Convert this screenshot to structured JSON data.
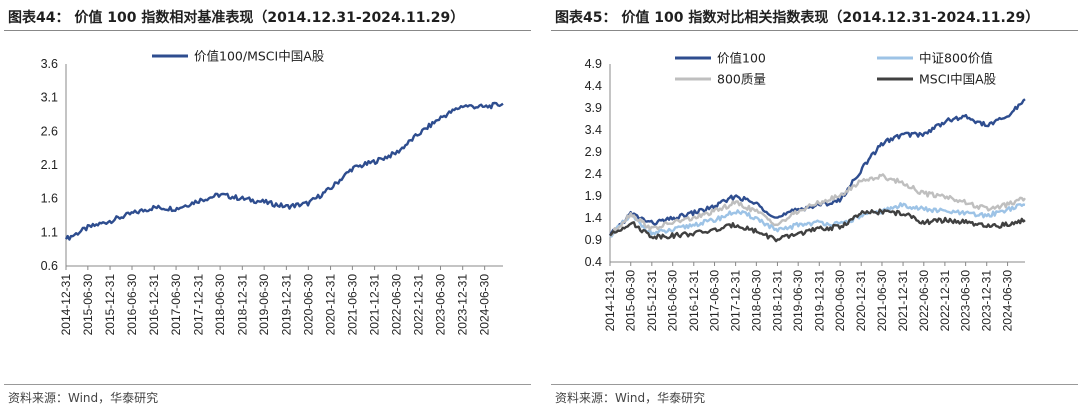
{
  "left": {
    "title": "图表44：  价值 100 指数相对基准表现（2014.12.31-2024.11.29）",
    "source": "资料来源：Wind，华泰研究"
  },
  "right": {
    "title": "图表45：  价值 100 指数对比相关指数表现（2014.12.31-2024.11.29）",
    "source": "资料来源：Wind，华泰研究"
  },
  "chart_data": [
    {
      "type": "line",
      "x_ticks": [
        "2014-12-31",
        "2015-06-30",
        "2015-12-31",
        "2016-06-30",
        "2016-12-31",
        "2017-06-30",
        "2017-12-31",
        "2018-06-30",
        "2018-12-31",
        "2019-06-30",
        "2019-12-31",
        "2020-06-30",
        "2020-12-31",
        "2021-06-30",
        "2021-12-31",
        "2022-06-30",
        "2022-12-31",
        "2023-06-30",
        "2023-12-31",
        "2024-06-30"
      ],
      "x": [
        "2014-12-31",
        "2015-06-30",
        "2015-12-31",
        "2016-06-30",
        "2016-12-31",
        "2017-06-30",
        "2017-12-31",
        "2018-06-30",
        "2018-12-31",
        "2019-06-30",
        "2019-12-31",
        "2020-06-30",
        "2020-12-31",
        "2021-06-30",
        "2021-12-31",
        "2022-06-30",
        "2022-12-31",
        "2023-06-30",
        "2023-12-31",
        "2024-06-30",
        "2024-11-29"
      ],
      "y_ticks": [
        "0.6",
        "1.1",
        "1.6",
        "2.1",
        "2.6",
        "3.1",
        "3.6"
      ],
      "ylim": [
        0.6,
        3.6
      ],
      "legend_position": "top-center",
      "series": [
        {
          "name": "价值100/MSCI中国A股",
          "color": "#2e4d8f",
          "values": [
            1.0,
            1.17,
            1.27,
            1.38,
            1.47,
            1.45,
            1.57,
            1.66,
            1.6,
            1.55,
            1.48,
            1.53,
            1.75,
            2.05,
            2.15,
            2.28,
            2.56,
            2.8,
            2.98,
            2.96,
            3.01
          ]
        }
      ]
    },
    {
      "type": "line",
      "x_ticks": [
        "2014-12-31",
        "2015-06-30",
        "2015-12-31",
        "2016-06-30",
        "2016-12-31",
        "2017-06-30",
        "2017-12-31",
        "2018-06-30",
        "2018-12-31",
        "2019-06-30",
        "2019-12-31",
        "2020-06-30",
        "2020-12-31",
        "2021-06-30",
        "2021-12-31",
        "2022-06-30",
        "2022-12-31",
        "2023-06-30",
        "2023-12-31",
        "2024-06-30"
      ],
      "x": [
        "2014-12-31",
        "2015-06-30",
        "2015-12-31",
        "2016-06-30",
        "2016-12-31",
        "2017-06-30",
        "2017-12-31",
        "2018-06-30",
        "2018-12-31",
        "2019-06-30",
        "2019-12-31",
        "2020-06-30",
        "2020-12-31",
        "2021-06-30",
        "2021-12-31",
        "2022-06-30",
        "2022-12-31",
        "2023-06-30",
        "2023-12-31",
        "2024-06-30",
        "2024-11-29"
      ],
      "y_ticks": [
        "0.4",
        "0.9",
        "1.4",
        "1.9",
        "2.4",
        "2.9",
        "3.4",
        "3.9",
        "4.4",
        "4.9"
      ],
      "ylim": [
        0.4,
        4.9
      ],
      "legend_position": "top",
      "series": [
        {
          "name": "价值100",
          "color": "#2e4d8f",
          "values": [
            1.0,
            1.5,
            1.28,
            1.38,
            1.52,
            1.66,
            1.9,
            1.72,
            1.4,
            1.6,
            1.7,
            1.8,
            2.5,
            3.1,
            3.3,
            3.3,
            3.6,
            3.7,
            3.5,
            3.7,
            4.1
          ]
        },
        {
          "name": "中证800价值",
          "color": "#9dc3e6",
          "values": [
            1.0,
            1.45,
            1.05,
            1.12,
            1.25,
            1.35,
            1.55,
            1.4,
            1.1,
            1.25,
            1.3,
            1.25,
            1.45,
            1.55,
            1.7,
            1.6,
            1.55,
            1.5,
            1.45,
            1.6,
            1.7
          ]
        },
        {
          "name": "800质量",
          "color": "#bfbfbf",
          "values": [
            1.0,
            1.5,
            1.15,
            1.3,
            1.4,
            1.55,
            1.75,
            1.55,
            1.25,
            1.55,
            1.75,
            1.9,
            2.25,
            2.35,
            2.2,
            1.95,
            1.9,
            1.75,
            1.6,
            1.7,
            1.85
          ]
        },
        {
          "name": "MSCI中国A股",
          "color": "#404040",
          "values": [
            1.0,
            1.3,
            0.98,
            1.0,
            1.05,
            1.12,
            1.25,
            1.1,
            0.9,
            1.05,
            1.15,
            1.2,
            1.5,
            1.55,
            1.5,
            1.3,
            1.35,
            1.3,
            1.2,
            1.25,
            1.35
          ]
        }
      ]
    }
  ]
}
